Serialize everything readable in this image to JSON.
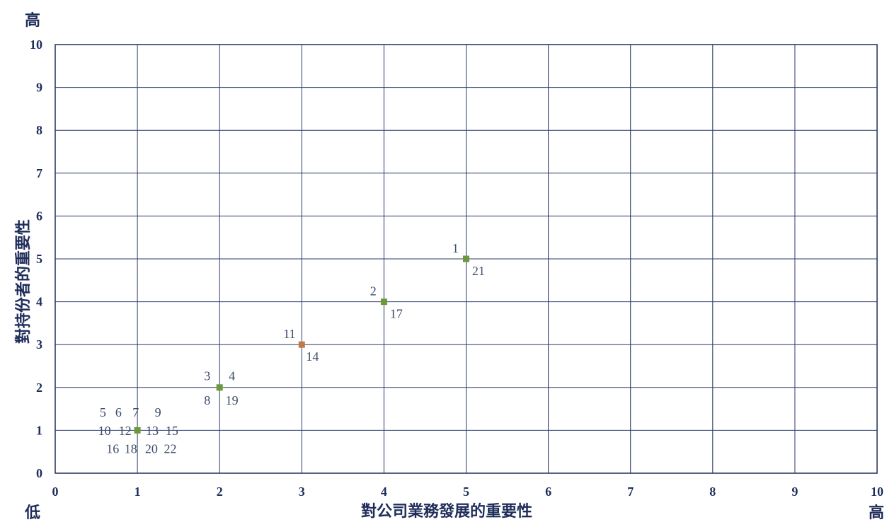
{
  "chart_data": {
    "type": "scatter",
    "xlabel": "對公司業務發展的重要性",
    "ylabel": "對持份者的重要性",
    "xlim": [
      0,
      10
    ],
    "ylim": [
      0,
      10
    ],
    "x_ticks": [
      "0",
      "1",
      "2",
      "3",
      "4",
      "5",
      "6",
      "7",
      "8",
      "9",
      "10"
    ],
    "y_ticks": [
      "0",
      "1",
      "2",
      "3",
      "4",
      "5",
      "6",
      "7",
      "8",
      "9",
      "10"
    ],
    "grid": true,
    "corner_labels": {
      "top": "高",
      "origin": "低",
      "right": "高"
    },
    "colors": {
      "axis": "#1f2d5a",
      "grid": "#2b3a6b",
      "green": "#6b9a3a",
      "orange": "#c07a4a",
      "label": "#3a4a6b"
    },
    "points": [
      {
        "x": 1,
        "y": 1,
        "color": "green"
      },
      {
        "x": 2,
        "y": 2,
        "color": "green"
      },
      {
        "x": 3,
        "y": 3,
        "color": "orange"
      },
      {
        "x": 4,
        "y": 4,
        "color": "green"
      },
      {
        "x": 5,
        "y": 5,
        "color": "green"
      }
    ],
    "annotations": [
      {
        "text": "5",
        "x": 0.58,
        "y": 1.42
      },
      {
        "text": "6",
        "x": 0.77,
        "y": 1.42
      },
      {
        "text": "7",
        "x": 0.98,
        "y": 1.42
      },
      {
        "text": "9",
        "x": 1.25,
        "y": 1.42
      },
      {
        "text": "10",
        "x": 0.6,
        "y": 0.99
      },
      {
        "text": "12",
        "x": 0.85,
        "y": 0.99
      },
      {
        "text": "13",
        "x": 1.18,
        "y": 0.99
      },
      {
        "text": "15",
        "x": 1.42,
        "y": 0.99
      },
      {
        "text": "16",
        "x": 0.7,
        "y": 0.57
      },
      {
        "text": "18",
        "x": 0.92,
        "y": 0.57
      },
      {
        "text": "20",
        "x": 1.17,
        "y": 0.57
      },
      {
        "text": "22",
        "x": 1.4,
        "y": 0.57
      },
      {
        "text": "3",
        "x": 1.85,
        "y": 2.27
      },
      {
        "text": "4",
        "x": 2.15,
        "y": 2.27
      },
      {
        "text": "8",
        "x": 1.85,
        "y": 1.7
      },
      {
        "text": "19",
        "x": 2.15,
        "y": 1.7
      },
      {
        "text": "11",
        "x": 2.85,
        "y": 3.25
      },
      {
        "text": "14",
        "x": 3.13,
        "y": 2.72
      },
      {
        "text": "2",
        "x": 3.87,
        "y": 4.25
      },
      {
        "text": "17",
        "x": 4.15,
        "y": 3.72
      },
      {
        "text": "1",
        "x": 4.87,
        "y": 5.25
      },
      {
        "text": "21",
        "x": 5.15,
        "y": 4.72
      }
    ]
  }
}
